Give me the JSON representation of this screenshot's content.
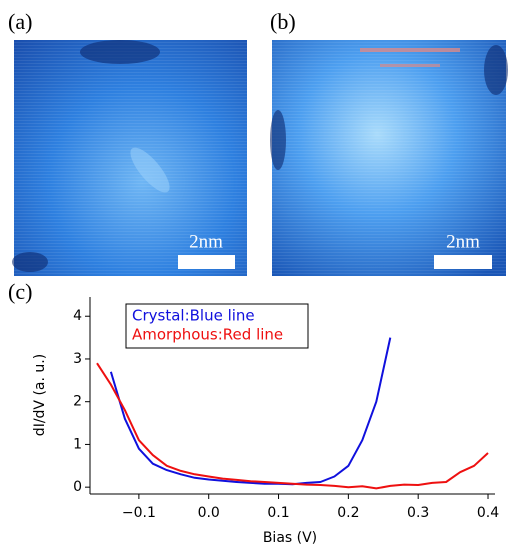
{
  "panels": [
    {
      "label": "(a)",
      "scale_bar": "2nm"
    },
    {
      "label": "(b)",
      "scale_bar": "2nm"
    }
  ],
  "chart_data": {
    "type": "line",
    "panel_label": "(c)",
    "x_label": "Bias (V)",
    "y_label": "dI/dV (a. u.)",
    "xlim": [
      -0.17,
      0.41
    ],
    "ylim": [
      -0.16,
      4.45
    ],
    "xticks": [
      {
        "value": -0.1,
        "label": "−0.1"
      },
      {
        "value": 0,
        "label": "0.0"
      },
      0.1,
      0.2,
      0.3,
      0.4
    ],
    "yticks": [
      0,
      1,
      2,
      3,
      4
    ],
    "x": [
      -0.16,
      -0.14,
      -0.12,
      -0.1,
      -0.08,
      -0.06,
      -0.04,
      -0.02,
      0,
      0.02,
      0.04,
      0.06,
      0.08,
      0.1,
      0.12,
      0.14,
      0.16,
      0.18,
      0.2,
      0.22,
      0.24,
      0.26,
      0.28,
      0.3,
      0.32,
      0.34,
      0.36,
      0.38,
      0.4
    ],
    "series": [
      {
        "name": "Crystal:Blue line",
        "color": "#1010dd",
        "values": [
          null,
          2.7,
          1.6,
          0.9,
          0.55,
          0.4,
          0.3,
          0.22,
          0.18,
          0.15,
          0.12,
          0.1,
          0.08,
          0.08,
          0.07,
          0.1,
          0.12,
          0.25,
          0.5,
          1.1,
          2.0,
          3.5,
          null,
          null,
          null,
          null,
          null,
          null,
          null
        ]
      },
      {
        "name": "Amorphous:Red line",
        "color": "#ee1010",
        "values": [
          2.9,
          2.4,
          1.8,
          1.1,
          0.75,
          0.5,
          0.38,
          0.3,
          0.25,
          0.2,
          0.17,
          0.14,
          0.12,
          0.1,
          0.08,
          0.06,
          0.05,
          0.03,
          0.0,
          0.02,
          -0.03,
          0.03,
          0.06,
          0.05,
          0.1,
          0.12,
          0.35,
          0.5,
          0.8
        ]
      }
    ]
  }
}
